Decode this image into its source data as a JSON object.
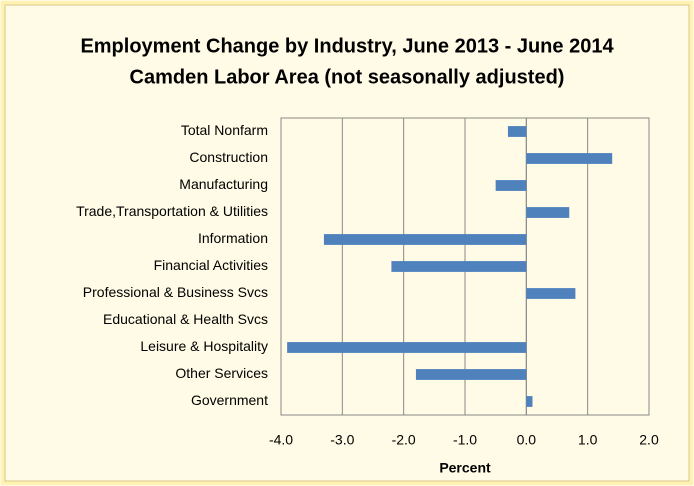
{
  "chart_data": {
    "type": "bar",
    "orientation": "horizontal",
    "title": "Employment Change by Industry, June 2013 - June 2014",
    "subtitle": "Camden Labor Area (not seasonally adjusted)",
    "x_label": "Percent",
    "categories": [
      "Total Nonfarm",
      "Construction",
      "Manufacturing",
      "Trade,Transportation & Utilities",
      "Information",
      "Financial Activities",
      "Professional & Business Svcs",
      "Educational & Health Svcs",
      "Leisure & Hospitality",
      "Other Services",
      "Government"
    ],
    "values": [
      -0.3,
      1.4,
      -0.5,
      0.7,
      -3.3,
      -2.2,
      0.8,
      0,
      -3.9,
      -1.8,
      0.1
    ],
    "color": "#4f81bd",
    "xlim": [
      -4,
      2
    ],
    "xticks": [
      {
        "value": -4,
        "label": "-4.0"
      },
      {
        "value": -3,
        "label": "-3.0"
      },
      {
        "value": -2,
        "label": "-2.0"
      },
      {
        "value": -1,
        "label": "-1.0"
      },
      {
        "value": 0,
        "label": "0.0"
      },
      {
        "value": 1,
        "label": "1.0"
      },
      {
        "value": 2,
        "label": "2.0"
      }
    ],
    "grid": true
  }
}
